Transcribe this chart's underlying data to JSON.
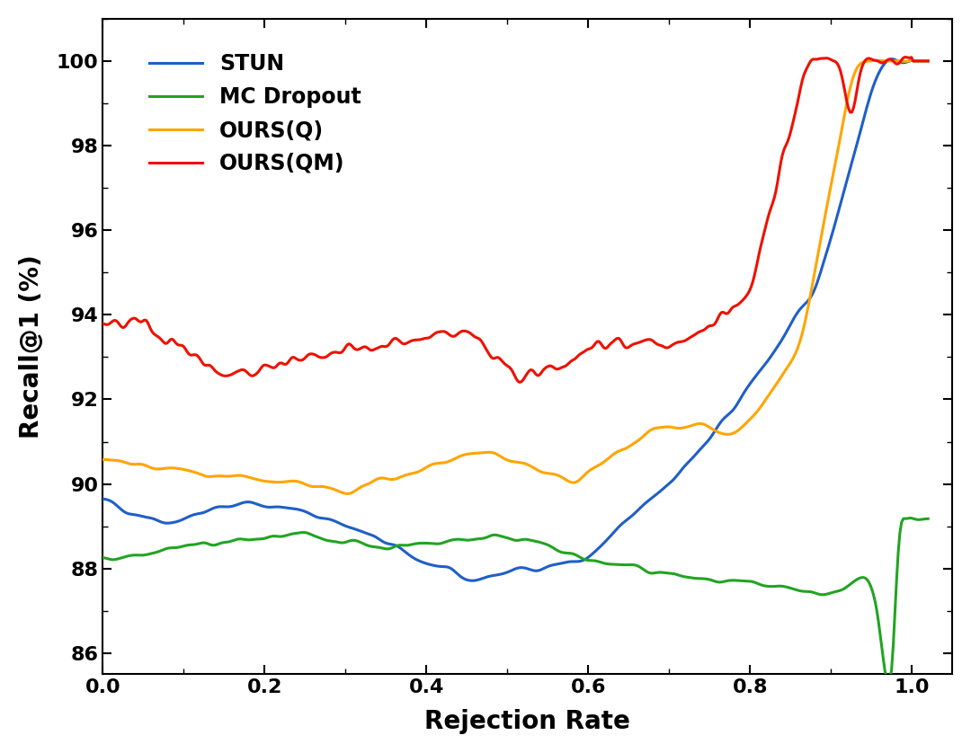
{
  "title": "",
  "xlabel": "Rejection Rate",
  "ylabel": "Recall@1 (%)",
  "xlim": [
    0.0,
    1.05
  ],
  "ylim": [
    85.5,
    101.0
  ],
  "yticks": [
    86,
    88,
    90,
    92,
    94,
    96,
    98,
    100
  ],
  "xticks": [
    0.0,
    0.2,
    0.4,
    0.6,
    0.8,
    1.0
  ],
  "legend_labels": [
    "STUN",
    "MC Dropout",
    "OURS(Q)",
    "OURS(QM)"
  ],
  "colors": {
    "STUN": "#1f5fc8",
    "MC Dropout": "#22a422",
    "OURS(Q)": "#ffa500",
    "OURS(QM)": "#ee1100"
  },
  "linewidth": 2.2,
  "background_color": "#ffffff",
  "axes_background": "#ffffff",
  "figure_width": 10.8,
  "figure_height": 8.38,
  "dpi": 100
}
